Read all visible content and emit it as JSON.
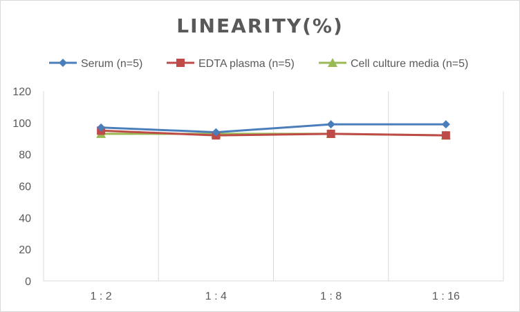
{
  "chart_data": {
    "type": "line",
    "title": "LINEARITY(%)",
    "xlabel": "",
    "ylabel": "",
    "categories": [
      "1:2",
      "1:4",
      "1:8",
      "1:16"
    ],
    "ylim": [
      0,
      120
    ],
    "yticks": [
      0,
      20,
      40,
      60,
      80,
      100,
      120
    ],
    "grid": "vertical",
    "legend": "top",
    "series": [
      {
        "name": "Serum (n=5)",
        "values": [
          97,
          94,
          99,
          99
        ],
        "color": "#4a7ebb",
        "marker": "diamond"
      },
      {
        "name": "EDTA plasma (n=5)",
        "values": [
          95,
          92,
          93,
          92
        ],
        "color": "#be4b48",
        "marker": "square"
      },
      {
        "name": "Cell culture media (n=5)",
        "values": [
          93,
          93,
          93,
          92
        ],
        "color": "#98b954",
        "marker": "triangle"
      }
    ]
  }
}
